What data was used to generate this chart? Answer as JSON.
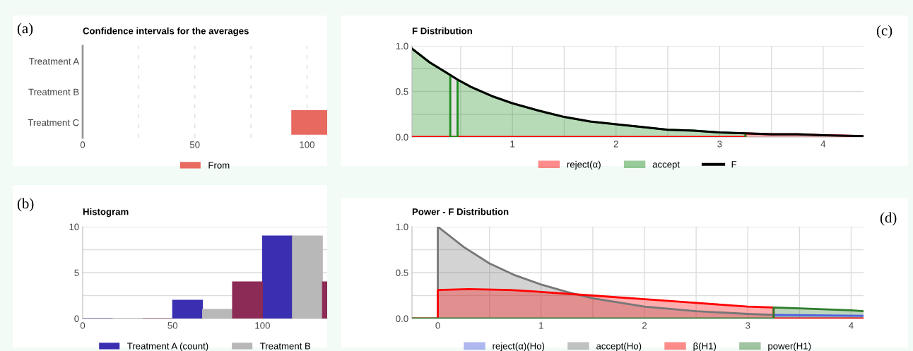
{
  "chart_data": [
    {
      "type": "bar",
      "orientation": "horizontal",
      "title": "Confidence intervals for the averages",
      "annotations": [
        "(a)"
      ],
      "categories": [
        "Treatment A",
        "Treatment B",
        "Treatment C"
      ],
      "series": [
        {
          "name": "From",
          "color": "#e8695f",
          "base": [
            null,
            null,
            93
          ],
          "values": [
            null,
            null,
            16
          ]
        }
      ],
      "xlim": [
        0,
        109
      ],
      "xticks": [
        0,
        {
          "value": 25,
          "label": null
        },
        50,
        {
          "value": 75,
          "label": null
        },
        100
      ],
      "grid": "x",
      "legend": "bottom"
    },
    {
      "type": "histogram",
      "title": "Histogram",
      "annotations": [
        "(b)"
      ],
      "bins": [
        0,
        50,
        100,
        150
      ],
      "series": [
        {
          "name": "Treatment A (count)",
          "color": "#3a2fb0",
          "values": [
            0,
            2,
            9
          ]
        },
        {
          "name": "Treatment B",
          "color": "#b8b8b8",
          "values": [
            0,
            1,
            9
          ]
        },
        {
          "color": "#8c2b55",
          "values": [
            0,
            4,
            4
          ]
        }
      ],
      "xlim": [
        0,
        136
      ],
      "xticks": [
        0,
        50,
        100
      ],
      "ylim": [
        0,
        10
      ],
      "yticks": [
        0,
        {
          "value": 2.5,
          "label": null
        },
        5,
        {
          "value": 7.5,
          "label": null
        },
        10
      ],
      "grid": "y",
      "legend": "bottom"
    },
    {
      "type": "area",
      "title": "F Distribution",
      "annotations": [
        "(c)"
      ],
      "series": [
        {
          "name": "reject(α)",
          "color": "#ff0000",
          "x": [
            0.03,
            3.25,
            3.25,
            3.5,
            3.75,
            4.0,
            4.39
          ],
          "values": [
            0,
            0,
            0.04,
            0.03,
            0.03,
            0.02,
            0.01
          ]
        },
        {
          "name": "accept",
          "color": "#1e8c1e",
          "x": [
            0.03,
            0.2,
            0.4,
            0.4,
            0.47,
            0.47,
            0.6,
            0.8,
            1.0,
            1.25,
            1.5,
            1.75,
            2.0,
            2.25,
            2.5,
            2.75,
            3.0,
            3.25,
            3.25
          ],
          "values": [
            0.97,
            0.82,
            0.68,
            0,
            0,
            0.63,
            0.55,
            0.45,
            0.37,
            0.29,
            0.22,
            0.17,
            0.14,
            0.11,
            0.08,
            0.07,
            0.05,
            0.04,
            0
          ]
        },
        {
          "color": "#a8a8a8",
          "x": [
            0.4,
            0.47
          ],
          "values": [
            0.68,
            0.63
          ]
        },
        {
          "name": "F",
          "type": "line",
          "color": "#000000",
          "x": [
            0.03,
            0.2,
            0.4,
            0.47,
            0.6,
            0.8,
            1.0,
            1.25,
            1.5,
            1.75,
            2.0,
            2.25,
            2.5,
            2.75,
            3.0,
            3.25,
            3.5,
            3.75,
            4.0,
            4.39
          ],
          "values": [
            0.97,
            0.82,
            0.68,
            0.63,
            0.55,
            0.45,
            0.37,
            0.29,
            0.22,
            0.17,
            0.14,
            0.11,
            0.08,
            0.07,
            0.05,
            0.04,
            0.03,
            0.03,
            0.02,
            0.01
          ]
        }
      ],
      "xlim": [
        0.03,
        4.39
      ],
      "xticks": [
        {
          "value": 0.5,
          "label": null
        },
        1,
        {
          "value": 1.5,
          "label": null
        },
        2,
        {
          "value": 2.5,
          "label": null
        },
        3,
        {
          "value": 3.5,
          "label": null
        },
        4
      ],
      "ylim": [
        0,
        1
      ],
      "yticks": [
        {
          "value": 0,
          "label": "0.0"
        },
        {
          "value": 0.25,
          "label": null
        },
        {
          "value": 0.5,
          "label": "0.5"
        },
        {
          "value": 0.75,
          "label": null
        },
        {
          "value": 1,
          "label": "1.0"
        }
      ],
      "grid": true,
      "legend": "bottom"
    },
    {
      "type": "area",
      "title": "Power - F Distribution",
      "annotations": [
        "(d)"
      ],
      "series": [
        {
          "name": "reject(α)(Ho)",
          "color": "#4f63e0",
          "x": [
            3.25,
            3.25,
            4.12
          ],
          "values": [
            0,
            0.04,
            0.03
          ]
        },
        {
          "name": "accept(Ho)",
          "color": "#777777",
          "x": [
            0,
            0,
            0.25,
            0.5,
            0.75,
            1.0,
            1.25,
            1.5,
            2.0,
            2.5,
            3.0,
            3.25
          ],
          "values": [
            0,
            1.0,
            0.78,
            0.6,
            0.47,
            0.37,
            0.29,
            0.22,
            0.13,
            0.08,
            0.05,
            0.04
          ]
        },
        {
          "name": "β(H1)",
          "color": "#ff0000",
          "x": [
            -0.25,
            0,
            0,
            0.3,
            0.7,
            1.0,
            1.5,
            2.0,
            2.5,
            3.0,
            3.25,
            3.25,
            4.12
          ],
          "values": [
            0,
            0,
            0.31,
            0.32,
            0.31,
            0.29,
            0.25,
            0.21,
            0.17,
            0.13,
            0.12,
            0,
            0
          ]
        },
        {
          "name": "power(H1)",
          "color": "#2e7d2e",
          "x": [
            -0.25,
            3.25,
            3.25,
            3.5,
            4.0,
            4.12
          ],
          "values": [
            0,
            0,
            0.12,
            0.11,
            0.09,
            0.08
          ]
        }
      ],
      "xlim": [
        -0.25,
        4.12
      ],
      "xticks": [
        0,
        {
          "value": 0.5,
          "label": null
        },
        1,
        {
          "value": 1.5,
          "label": null
        },
        2,
        {
          "value": 2.5,
          "label": null
        },
        3,
        {
          "value": 3.5,
          "label": null
        },
        4
      ],
      "ylim": [
        0,
        1
      ],
      "yticks": [
        {
          "value": 0,
          "label": "0.0"
        },
        {
          "value": 0.25,
          "label": null
        },
        {
          "value": 0.5,
          "label": "0.5"
        },
        {
          "value": 0.75,
          "label": null
        },
        {
          "value": 1,
          "label": "1.0"
        }
      ],
      "grid": true,
      "legend": "bottom"
    }
  ]
}
